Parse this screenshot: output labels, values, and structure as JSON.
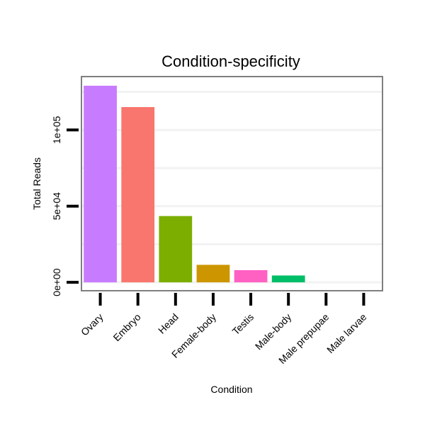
{
  "chart_data": {
    "type": "bar",
    "title": "Condition-specificity",
    "xlabel": "Condition",
    "ylabel": "Total Reads",
    "categories": [
      "Ovary",
      "Embryo",
      "Head",
      "Female-body",
      "Testis",
      "Male-body",
      "Male prepupae",
      "Male larvae"
    ],
    "values": [
      129000,
      115000,
      43500,
      11500,
      8000,
      4500,
      0,
      0
    ],
    "colors": [
      "#C77CFF",
      "#F8766D",
      "#7CAE00",
      "#CD9600",
      "#FF61C3",
      "#00BE67",
      "#00A9FF",
      "#00BFC4"
    ],
    "yticks": [
      0,
      50000,
      100000
    ],
    "ytick_labels": [
      "0e+00",
      "5e+04",
      "1e+05"
    ],
    "ylim": [
      -5500,
      135000
    ],
    "grid": true,
    "legend": "none"
  }
}
